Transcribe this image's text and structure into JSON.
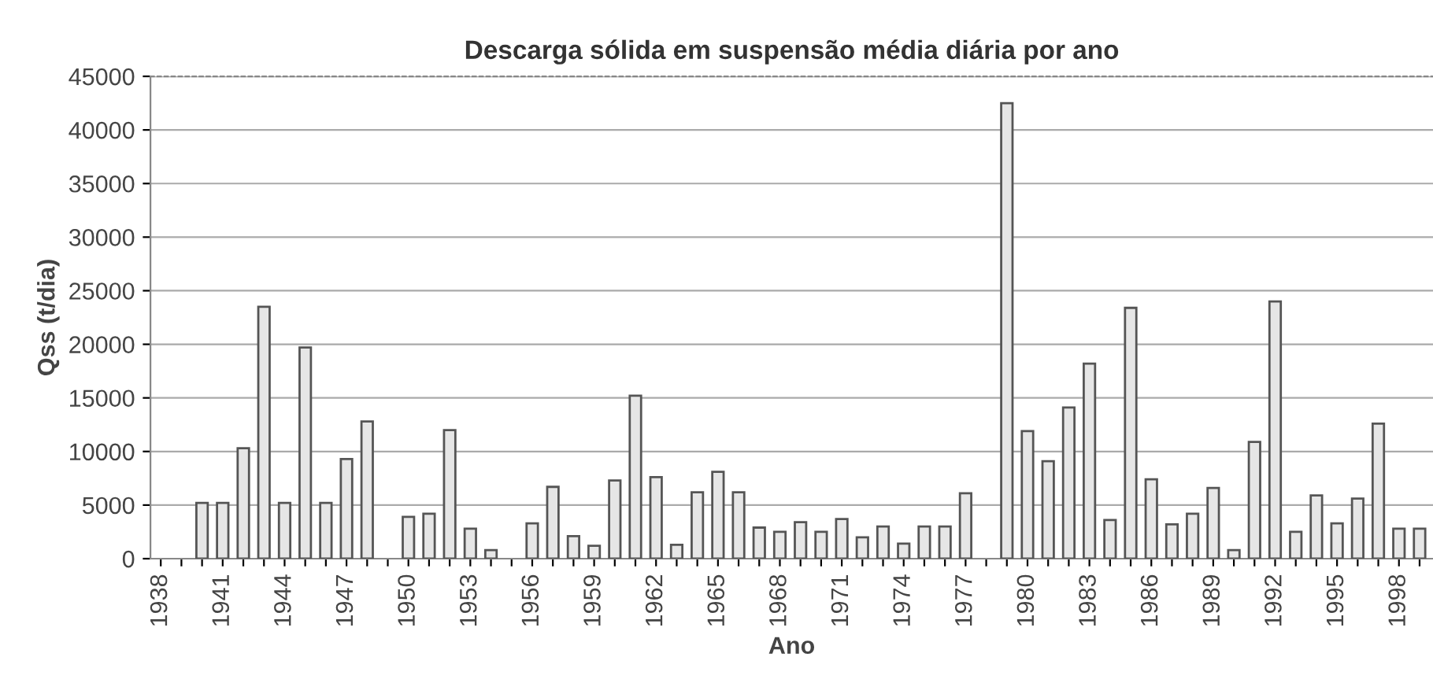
{
  "chart_data": {
    "type": "bar",
    "title": "Descarga sólida em suspensão média diária por ano",
    "xlabel": "Ano",
    "ylabel": "Qss (t/dia)",
    "categories": [
      "1938",
      null,
      null,
      "1941",
      null,
      null,
      "1944",
      null,
      null,
      "1947",
      null,
      null,
      "1950",
      null,
      null,
      "1953",
      null,
      null,
      "1956",
      null,
      null,
      "1959",
      null,
      null,
      "1962",
      null,
      null,
      "1965",
      null,
      null,
      "1968",
      null,
      null,
      "1971",
      null,
      null,
      "1974",
      null,
      null,
      "1977",
      null,
      null,
      "1980",
      null,
      null,
      "1983",
      null,
      null,
      "1986",
      null,
      null,
      "1989",
      null,
      null,
      "1992",
      null,
      null,
      "1995",
      null,
      null,
      "1998",
      null
    ],
    "values": [
      null,
      null,
      5200,
      5200,
      10300,
      23500,
      5200,
      19700,
      5200,
      9300,
      12800,
      null,
      3900,
      4200,
      12000,
      2800,
      800,
      null,
      3300,
      6700,
      2100,
      1200,
      7300,
      15200,
      7600,
      1300,
      6200,
      8100,
      6200,
      2900,
      2500,
      3400,
      2500,
      3700,
      2000,
      3000,
      1400,
      3000,
      3000,
      6100,
      null,
      42500,
      11900,
      9100,
      14100,
      18200,
      3600,
      23400,
      7400,
      3200,
      4200,
      6600,
      800,
      10900,
      24000,
      2500,
      5900,
      3300,
      5600,
      12600,
      2800,
      2800
    ],
    "color": "#e6e6e6",
    "ylim": [
      0,
      45000
    ],
    "yticks": [
      0,
      5000,
      10000,
      15000,
      20000,
      25000,
      30000,
      35000,
      40000,
      45000
    ],
    "grid": "y"
  }
}
